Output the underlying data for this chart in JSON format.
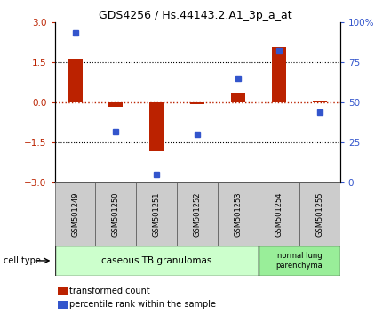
{
  "title": "GDS4256 / Hs.44143.2.A1_3p_a_at",
  "samples": [
    "GSM501249",
    "GSM501250",
    "GSM501251",
    "GSM501252",
    "GSM501253",
    "GSM501254",
    "GSM501255"
  ],
  "transformed_count": [
    1.62,
    -0.18,
    -1.82,
    -0.08,
    0.38,
    2.05,
    0.04
  ],
  "percentile_rank": [
    93,
    32,
    5,
    30,
    65,
    82,
    44
  ],
  "bar_color": "#bb2200",
  "dot_color": "#3355cc",
  "ylim_left": [
    -3,
    3
  ],
  "ylim_right": [
    0,
    100
  ],
  "yticks_left": [
    -3,
    -1.5,
    0,
    1.5,
    3
  ],
  "yticks_right": [
    0,
    25,
    50,
    75,
    100
  ],
  "ytick_labels_right": [
    "0",
    "25",
    "50",
    "75",
    "100%"
  ],
  "hlines": [
    1.5,
    -1.5
  ],
  "zero_line": 0,
  "group1_label": "caseous TB granulomas",
  "group1_count": 5,
  "group2_label": "normal lung\nparenchyma",
  "group2_count": 2,
  "group1_color": "#ccffcc",
  "group2_color": "#99ee99",
  "sample_box_color": "#cccccc",
  "cell_type_label": "cell type",
  "legend1_label": "transformed count",
  "legend2_label": "percentile rank within the sample",
  "background_color": "#ffffff",
  "bar_width": 0.35,
  "title_fontsize": 9
}
